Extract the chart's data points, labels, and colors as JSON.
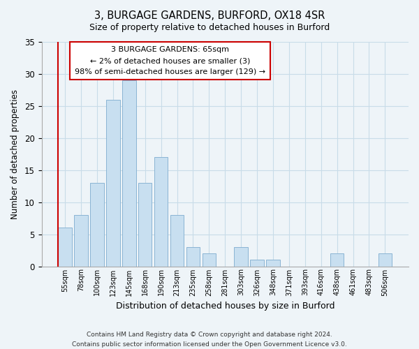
{
  "title": "3, BURGAGE GARDENS, BURFORD, OX18 4SR",
  "subtitle": "Size of property relative to detached houses in Burford",
  "xlabel": "Distribution of detached houses by size in Burford",
  "ylabel": "Number of detached properties",
  "bar_values": [
    6,
    8,
    13,
    26,
    29,
    13,
    17,
    8,
    3,
    2,
    0,
    3,
    1,
    1,
    0,
    0,
    0,
    2,
    0,
    0,
    2
  ],
  "bar_labels": [
    "55sqm",
    "78sqm",
    "100sqm",
    "123sqm",
    "145sqm",
    "168sqm",
    "190sqm",
    "213sqm",
    "235sqm",
    "258sqm",
    "281sqm",
    "303sqm",
    "326sqm",
    "348sqm",
    "371sqm",
    "393sqm",
    "416sqm",
    "438sqm",
    "461sqm",
    "483sqm",
    "506sqm"
  ],
  "bar_color": "#c8dff0",
  "bar_edge_color": "#8ab4d4",
  "ylim": [
    0,
    35
  ],
  "yticks": [
    0,
    5,
    10,
    15,
    20,
    25,
    30,
    35
  ],
  "annotation_line1": "3 BURGAGE GARDENS: 65sqm",
  "annotation_line2": "← 2% of detached houses are smaller (3)",
  "annotation_line3": "98% of semi-detached houses are larger (129) →",
  "annotation_box_color": "#ffffff",
  "annotation_border_color": "#cc0000",
  "property_marker_color": "#cc0000",
  "footer_line1": "Contains HM Land Registry data © Crown copyright and database right 2024.",
  "footer_line2": "Contains public sector information licensed under the Open Government Licence v3.0.",
  "grid_color": "#c8dce8",
  "background_color": "#eef4f8"
}
